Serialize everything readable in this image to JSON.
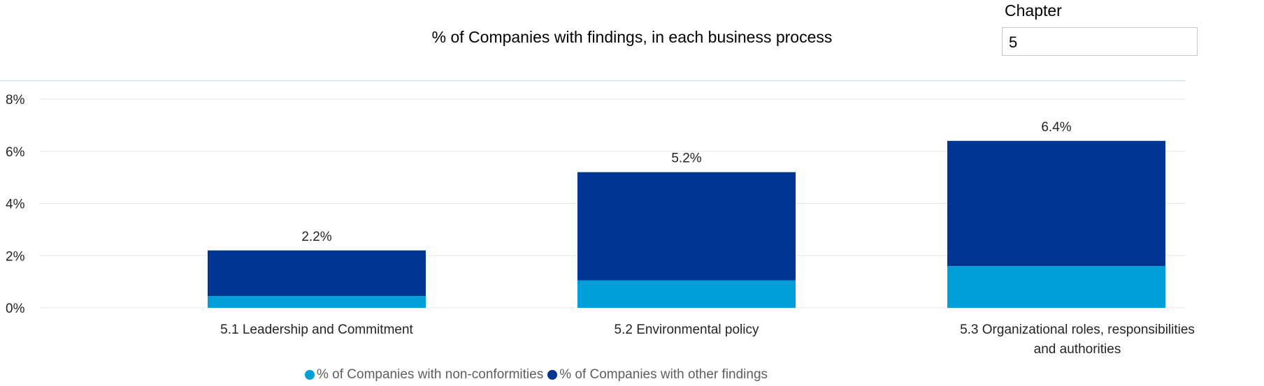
{
  "slicer": {
    "label": "Chapter",
    "value": "5"
  },
  "chart_data": {
    "type": "bar",
    "stacked": true,
    "title": "% of Companies with findings, in each business process",
    "categories": [
      "5.1 Leadership and Commitment",
      "5.2 Environmental policy",
      "5.3 Organizational roles, responsibilities and authorities"
    ],
    "series": [
      {
        "name": "% of Companies with non-conformities",
        "color": "#009fda",
        "values": [
          0.45,
          1.05,
          1.6
        ]
      },
      {
        "name": "% of Companies with other findings",
        "color": "#003591",
        "values": [
          1.75,
          4.15,
          4.8
        ]
      }
    ],
    "total_labels": [
      "2.2%",
      "5.2%",
      "6.4%"
    ],
    "y_ticks": [
      "0%",
      "2%",
      "4%",
      "6%",
      "8%"
    ],
    "ylim": [
      0,
      8
    ],
    "grid": true,
    "legend_position": "bottom"
  }
}
